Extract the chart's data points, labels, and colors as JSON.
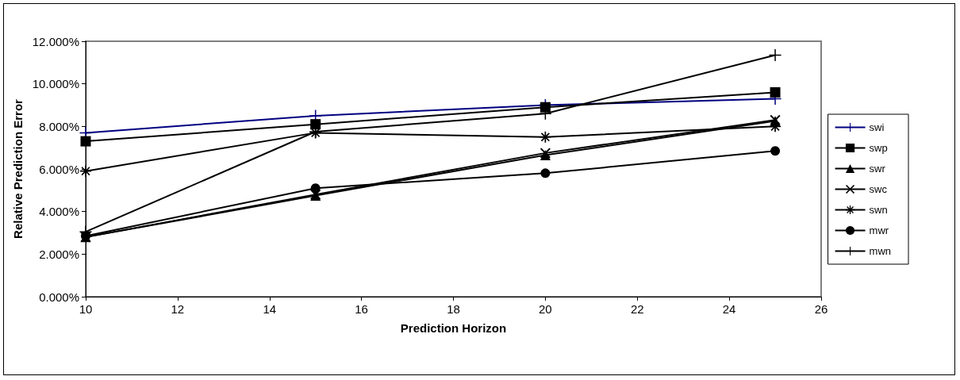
{
  "chart_data": {
    "type": "line",
    "xlabel": "Prediction Horizon",
    "ylabel": "Relative Prediction Error",
    "x": [
      10,
      15,
      20,
      25
    ],
    "xlim": [
      10,
      26
    ],
    "xticks": [
      10,
      12,
      14,
      16,
      18,
      20,
      22,
      24,
      26
    ],
    "ylim": [
      0,
      12
    ],
    "yticks": [
      {
        "value": 0,
        "label": "0.000%"
      },
      {
        "value": 2,
        "label": "2.000%"
      },
      {
        "value": 4,
        "label": "4.000%"
      },
      {
        "value": 6,
        "label": "6.000%"
      },
      {
        "value": 8,
        "label": "8.000%"
      },
      {
        "value": 10,
        "label": "10.000%"
      },
      {
        "value": 12,
        "label": "12.000%"
      }
    ],
    "grid": false,
    "legend": "right",
    "line_style": "solid",
    "series": [
      {
        "name": "swi",
        "color": "#000080",
        "marker": "plus",
        "values": [
          7.7,
          8.5,
          9.0,
          9.3
        ]
      },
      {
        "name": "swp",
        "color": "#000000",
        "marker": "square",
        "values": [
          7.3,
          8.1,
          8.9,
          9.6
        ]
      },
      {
        "name": "swr",
        "color": "#000000",
        "marker": "triangle",
        "values": [
          2.8,
          4.75,
          6.65,
          8.25
        ]
      },
      {
        "name": "swc",
        "color": "#000000",
        "marker": "cross",
        "values": [
          2.8,
          4.8,
          6.75,
          8.3
        ]
      },
      {
        "name": "swn",
        "color": "#000000",
        "marker": "star",
        "values": [
          5.9,
          7.7,
          7.5,
          8.0
        ]
      },
      {
        "name": "mwr",
        "color": "#000000",
        "marker": "circle",
        "values": [
          2.85,
          5.1,
          5.8,
          6.85
        ]
      },
      {
        "name": "mwn",
        "color": "#000000",
        "marker": "plus",
        "values": [
          3.05,
          7.75,
          8.6,
          11.35
        ]
      }
    ]
  }
}
